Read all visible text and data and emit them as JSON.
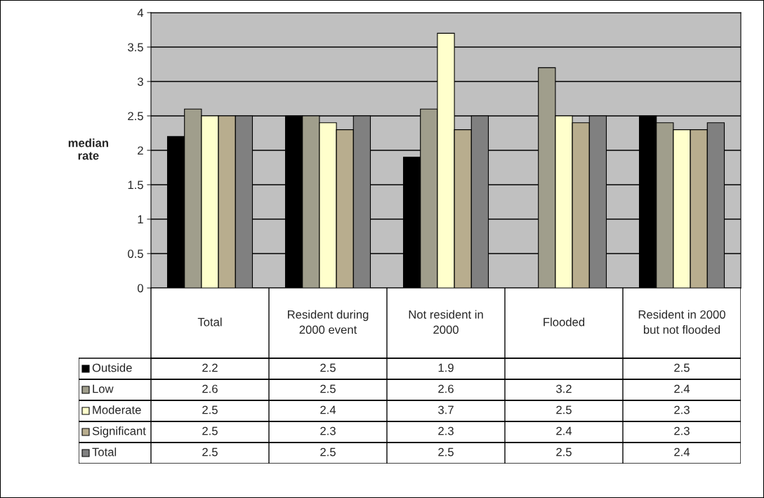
{
  "chart_data": {
    "type": "bar",
    "ylabel": "median rate",
    "categories": [
      "Total",
      "Resident during 2000 event",
      "Not resident in 2000",
      "Flooded",
      "Resident in 2000 but not flooded"
    ],
    "series": [
      {
        "name": "Outside",
        "color": "#000000",
        "values": [
          2.2,
          2.5,
          1.9,
          null,
          2.5
        ]
      },
      {
        "name": "Low",
        "color": "#a09e8c",
        "values": [
          2.6,
          2.5,
          2.6,
          3.2,
          2.4
        ]
      },
      {
        "name": "Moderate",
        "color": "#ffffcc",
        "values": [
          2.5,
          2.4,
          3.7,
          2.5,
          2.3
        ]
      },
      {
        "name": "Significant",
        "color": "#b8ad8e",
        "values": [
          2.5,
          2.3,
          2.3,
          2.4,
          2.3
        ]
      },
      {
        "name": "Total",
        "color": "#808080",
        "values": [
          2.5,
          2.5,
          2.5,
          2.5,
          2.4
        ]
      }
    ],
    "ylim": [
      0,
      4
    ],
    "yticks": [
      0,
      0.5,
      1,
      1.5,
      2,
      2.5,
      3,
      3.5,
      4
    ],
    "grid": "y",
    "legend": "bottom",
    "data_labels": true
  }
}
